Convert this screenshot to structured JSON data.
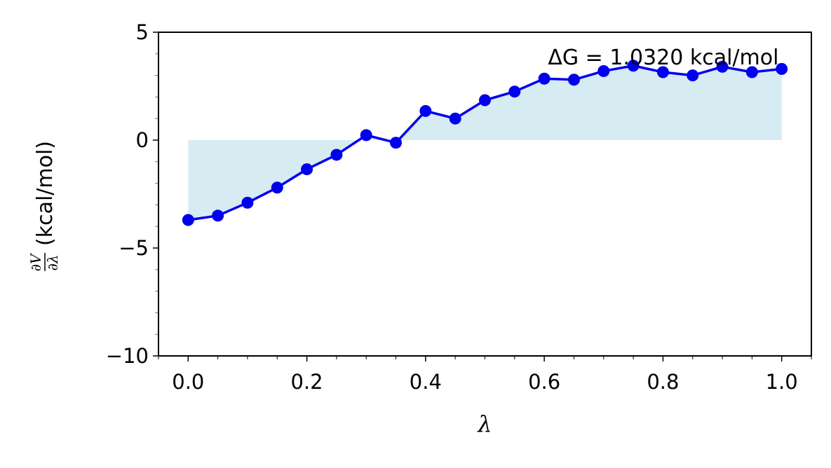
{
  "chart_data": {
    "type": "line",
    "annotation": "ΔG = 1.0320 kcal/mol",
    "xlabel": "λ",
    "ylabel": {
      "numerator": "∂V",
      "denominator": "∂λ",
      "unit": "(kcal/mol)"
    },
    "xlim": [
      -0.05,
      1.05
    ],
    "ylim": [
      -10,
      5
    ],
    "xticks": [
      0.0,
      0.2,
      0.4,
      0.6,
      0.8,
      1.0
    ],
    "xtick_labels": [
      "0.0",
      "0.2",
      "0.4",
      "0.6",
      "0.8",
      "1.0"
    ],
    "yticks": [
      -10,
      -5,
      0,
      5
    ],
    "ytick_labels": [
      "−10",
      "−5",
      "0",
      "5"
    ],
    "grid": false,
    "colors": {
      "line": "#0000ee",
      "marker": "#0000ee",
      "fill": "#add8e6"
    },
    "series": [
      {
        "x": [
          0.0,
          0.05,
          0.1,
          0.15,
          0.2,
          0.25,
          0.3,
          0.35,
          0.4,
          0.45,
          0.5,
          0.55,
          0.6,
          0.65,
          0.7,
          0.75,
          0.8,
          0.85,
          0.9,
          0.95,
          1.0
        ],
        "y": [
          -3.7,
          -3.5,
          -2.9,
          -2.2,
          -1.35,
          -0.68,
          0.23,
          -0.12,
          1.35,
          1.0,
          1.85,
          2.25,
          2.85,
          2.8,
          3.2,
          3.45,
          3.15,
          3.0,
          3.4,
          3.15,
          3.3
        ]
      }
    ]
  }
}
